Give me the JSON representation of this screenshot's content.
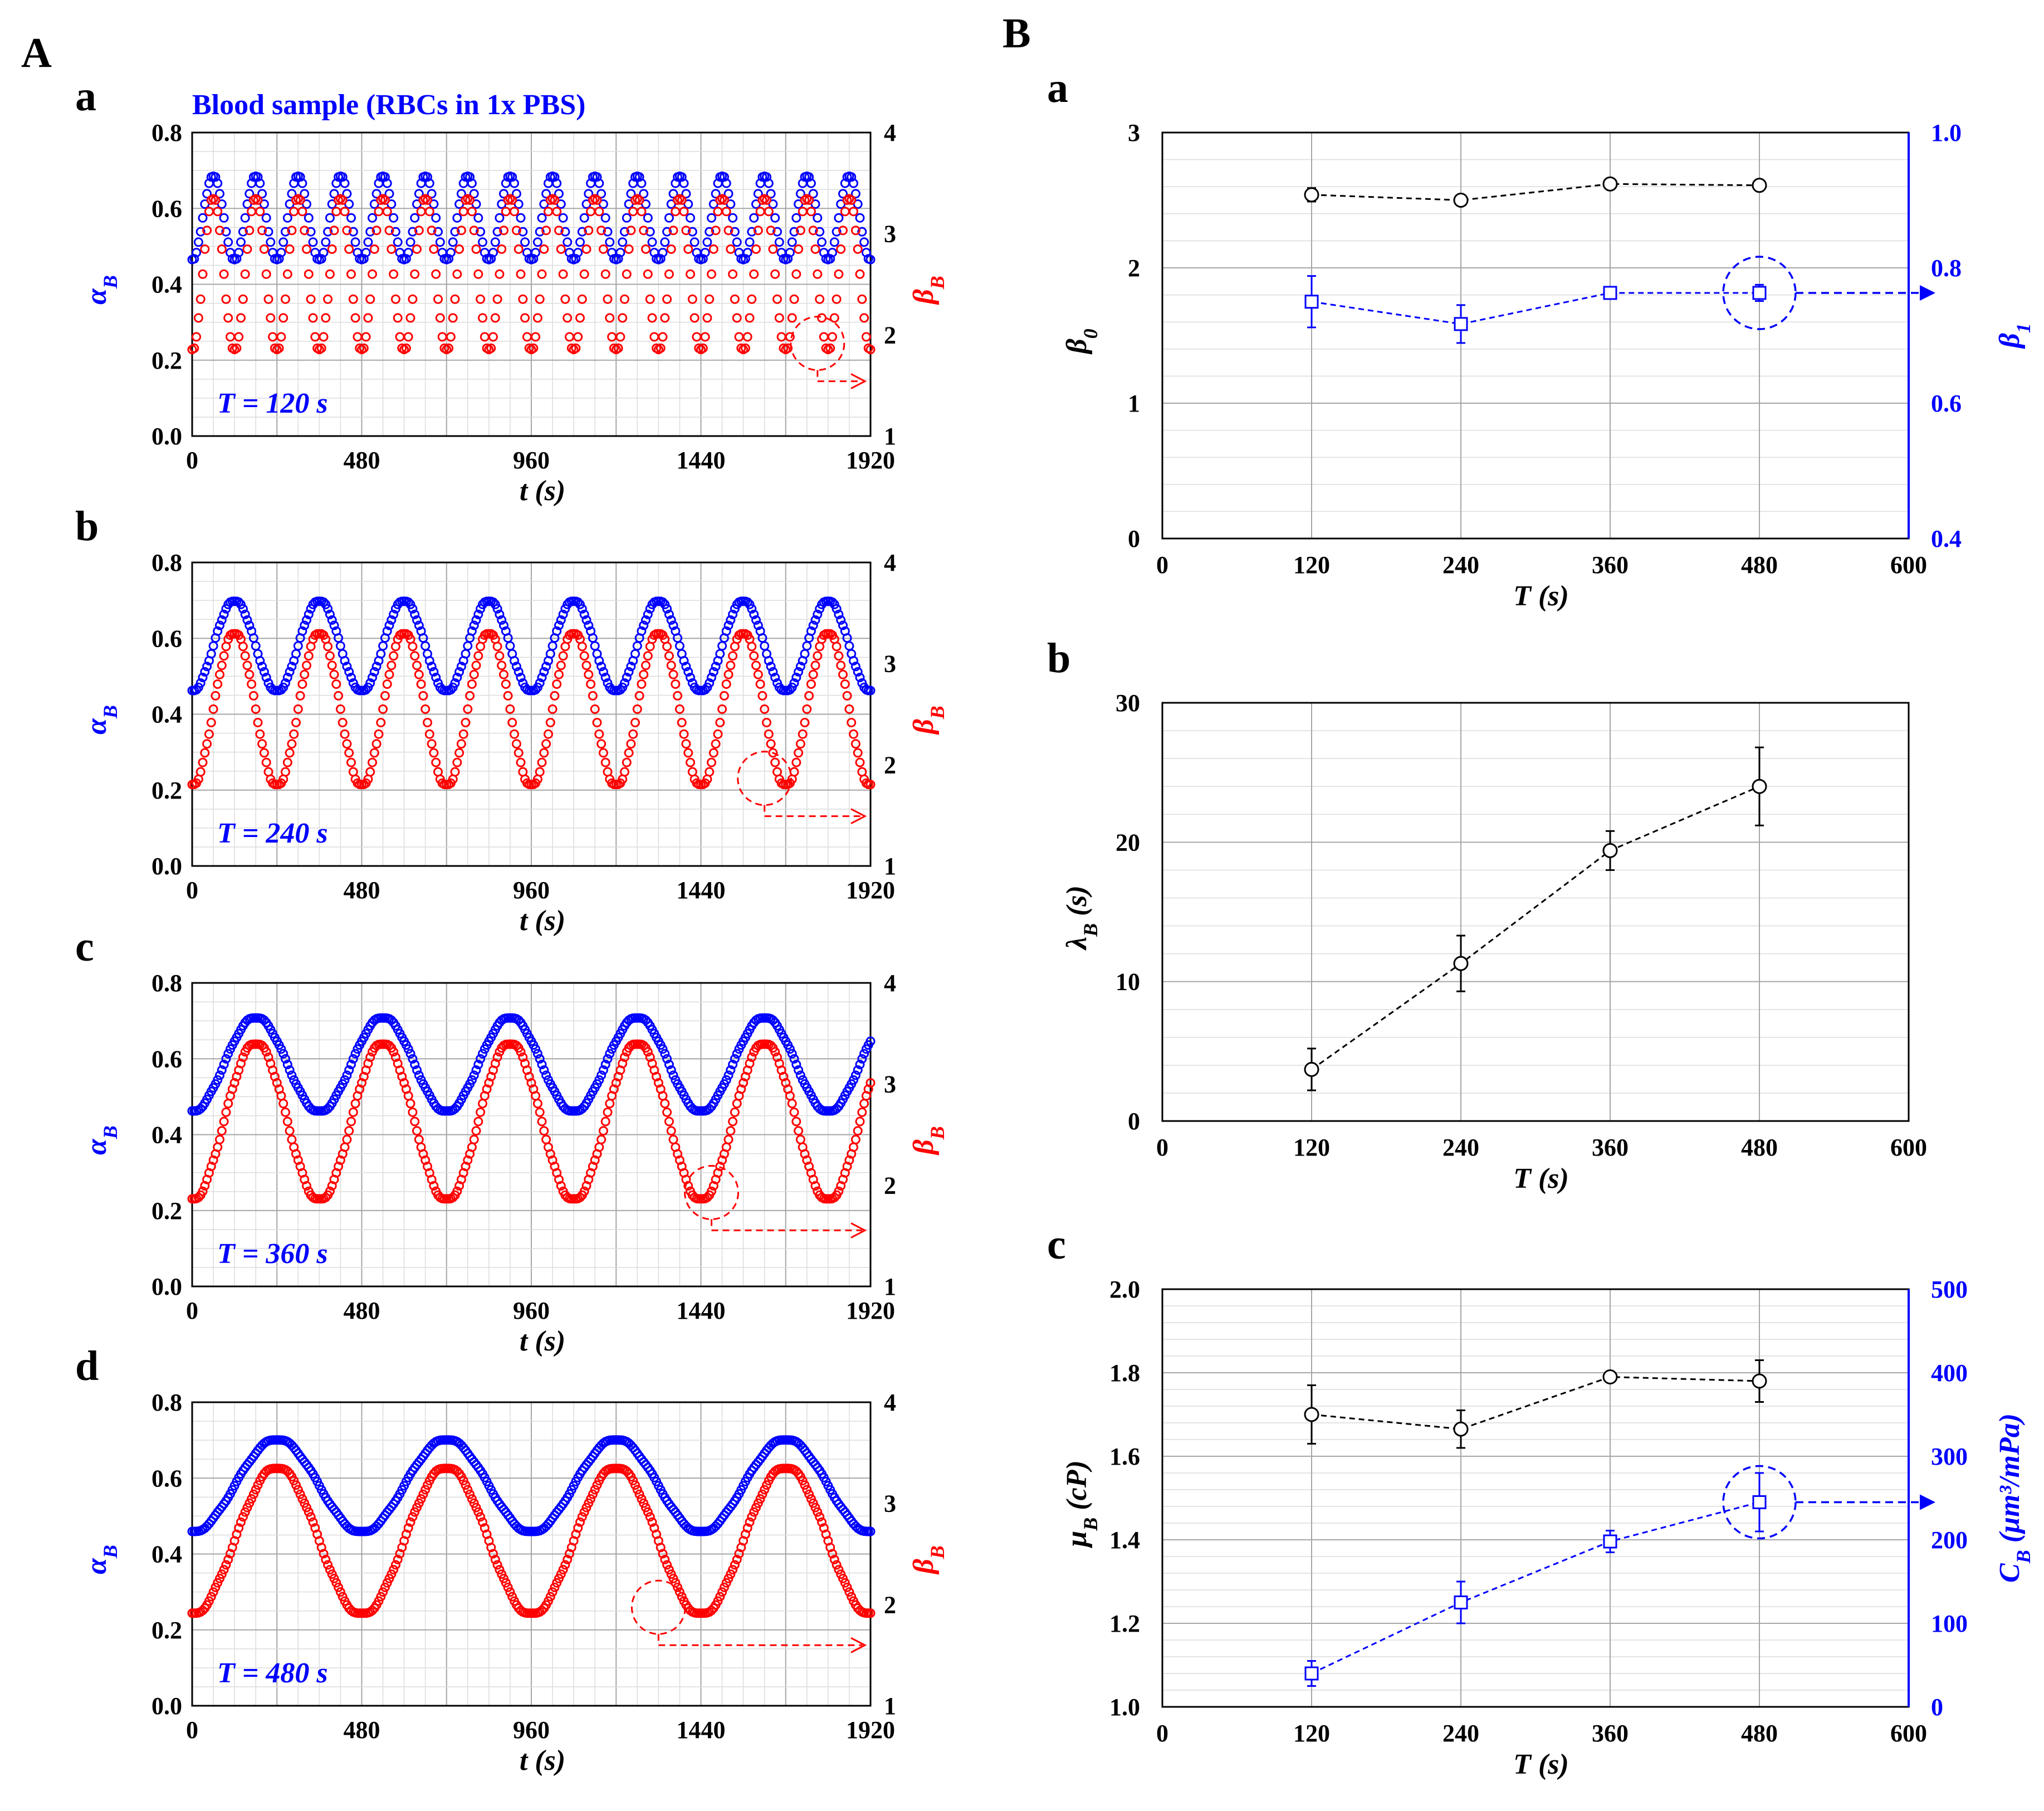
{
  "figure": {
    "panel_A_label": "A",
    "panel_B_label": "B",
    "sample_title": "Blood sample (RBCs in 1x PBS)"
  },
  "colors": {
    "alpha": "#0000ff",
    "beta": "#ff0000",
    "black": "#000000",
    "grid_major": "#a6a6a6",
    "grid_minor": "#dcdcdc"
  },
  "chart_data": [
    {
      "id": "A-a",
      "label": "a",
      "type": "scatter",
      "period": 120,
      "period_label": "T = 120 s",
      "xlabel": "t (s)",
      "ylabel_left": "α",
      "ylabel_left_sub": "B",
      "ylabel_right": "β",
      "ylabel_right_sub": "B",
      "xlim": [
        0,
        1920
      ],
      "xticks": [
        0,
        480,
        960,
        1440,
        1920
      ],
      "xtick_labels": [
        "0",
        "480",
        "960",
        "1440",
        "1920"
      ],
      "ylim_left": [
        0,
        0.8
      ],
      "yticks_left_labels": [
        "0.0",
        "0.2",
        "0.4",
        "0.6",
        "0.8"
      ],
      "ylim_right": [
        1,
        4
      ],
      "yticks_right_labels": [
        "1",
        "2",
        "3",
        "4"
      ],
      "series": [
        {
          "name": "αB",
          "axis": "left",
          "mean": 0.575,
          "amp": 0.112,
          "color": "#0000ff"
        },
        {
          "name": "βB",
          "axis": "right",
          "mean": 2.6,
          "amp": 0.76,
          "color": "#ff0000"
        }
      ]
    },
    {
      "id": "A-b",
      "label": "b",
      "type": "scatter",
      "period": 240,
      "period_label": "T = 240 s",
      "xlabel": "t (s)",
      "ylabel_left": "α",
      "ylabel_left_sub": "B",
      "ylabel_right": "β",
      "ylabel_right_sub": "B",
      "xlim": [
        0,
        1920
      ],
      "xticks": [
        0,
        480,
        960,
        1440,
        1920
      ],
      "xtick_labels": [
        "0",
        "480",
        "960",
        "1440",
        "1920"
      ],
      "ylim_left": [
        0,
        0.8
      ],
      "yticks_left_labels": [
        "0.0",
        "0.2",
        "0.4",
        "0.6",
        "0.8"
      ],
      "ylim_right": [
        1,
        4
      ],
      "yticks_right_labels": [
        "1",
        "2",
        "3",
        "4"
      ],
      "series": [
        {
          "name": "αB",
          "axis": "left",
          "mean": 0.58,
          "amp": 0.12,
          "color": "#0000ff"
        },
        {
          "name": "βB",
          "axis": "right",
          "mean": 2.55,
          "amp": 0.76,
          "color": "#ff0000"
        }
      ]
    },
    {
      "id": "A-c",
      "label": "c",
      "type": "scatter",
      "period": 360,
      "period_label": "T = 360 s",
      "xlabel": "t (s)",
      "ylabel_left": "α",
      "ylabel_left_sub": "B",
      "ylabel_right": "β",
      "ylabel_right_sub": "B",
      "xlim": [
        0,
        1920
      ],
      "xticks": [
        0,
        480,
        960,
        1440,
        1920
      ],
      "xtick_labels": [
        "0",
        "480",
        "960",
        "1440",
        "1920"
      ],
      "ylim_left": [
        0,
        0.8
      ],
      "yticks_left_labels": [
        "0.0",
        "0.2",
        "0.4",
        "0.6",
        "0.8"
      ],
      "ylim_right": [
        1,
        4
      ],
      "yticks_right_labels": [
        "1",
        "2",
        "3",
        "4"
      ],
      "series": [
        {
          "name": "αB",
          "axis": "left",
          "mean": 0.585,
          "amp": 0.125,
          "color": "#0000ff"
        },
        {
          "name": "βB",
          "axis": "right",
          "mean": 2.63,
          "amp": 0.78,
          "color": "#ff0000"
        }
      ]
    },
    {
      "id": "A-d",
      "label": "d",
      "type": "scatter",
      "period": 480,
      "period_label": "T = 480 s",
      "xlabel": "t (s)",
      "ylabel_left": "α",
      "ylabel_left_sub": "B",
      "ylabel_right": "β",
      "ylabel_right_sub": "B",
      "xlim": [
        0,
        1920
      ],
      "xticks": [
        0,
        480,
        960,
        1440,
        1920
      ],
      "xtick_labels": [
        "0",
        "480",
        "960",
        "1440",
        "1920"
      ],
      "ylim_left": [
        0,
        0.8
      ],
      "yticks_left_labels": [
        "0.0",
        "0.2",
        "0.4",
        "0.6",
        "0.8"
      ],
      "ylim_right": [
        1,
        4
      ],
      "yticks_right_labels": [
        "1",
        "2",
        "3",
        "4"
      ],
      "series": [
        {
          "name": "αB",
          "axis": "left",
          "mean": 0.58,
          "amp": 0.123,
          "color": "#0000ff"
        },
        {
          "name": "βB",
          "axis": "right",
          "mean": 2.63,
          "amp": 0.73,
          "color": "#ff0000"
        }
      ]
    },
    {
      "id": "B-a",
      "label": "a",
      "type": "line",
      "xlabel": "T (s)",
      "x": [
        120,
        240,
        360,
        480
      ],
      "xlim": [
        0,
        600
      ],
      "xtick_labels": [
        "0",
        "120",
        "240",
        "360",
        "480",
        "600"
      ],
      "ylabel_left": "β",
      "ylabel_left_sub": "0",
      "ylim_left": [
        0,
        3
      ],
      "yticks_left_labels": [
        "0",
        "1",
        "2",
        "3"
      ],
      "ylabel_right": "β",
      "ylabel_right_sub": "1",
      "ylim_right": [
        0.4,
        1.0
      ],
      "yticks_right_labels": [
        "0.4",
        "0.6",
        "0.8",
        "1.0"
      ],
      "series": [
        {
          "name": "β0",
          "axis": "left",
          "marker": "circle",
          "color": "#000000",
          "values": [
            2.54,
            2.5,
            2.62,
            2.61
          ],
          "errors": [
            0.05,
            0.02,
            0.01,
            0.01
          ]
        },
        {
          "name": "β1",
          "axis": "right",
          "marker": "square",
          "color": "#0000ff",
          "values": [
            0.75,
            0.717,
            0.763,
            0.763
          ],
          "errors": [
            0.038,
            0.028,
            0.008,
            0.012
          ]
        }
      ]
    },
    {
      "id": "B-b",
      "label": "b",
      "type": "line",
      "xlabel": "T (s)",
      "x": [
        120,
        240,
        360,
        480
      ],
      "xlim": [
        0,
        600
      ],
      "xtick_labels": [
        "0",
        "120",
        "240",
        "360",
        "480",
        "600"
      ],
      "ylabel_left": "λ",
      "ylabel_left_sub": "B",
      "ylabel_left_suffix": " (s)",
      "ylim_left": [
        0,
        30
      ],
      "yticks_left_labels": [
        "0",
        "10",
        "20",
        "30"
      ],
      "series": [
        {
          "name": "λB",
          "axis": "left",
          "marker": "circle",
          "color": "#000000",
          "values": [
            3.7,
            11.3,
            19.4,
            24.0
          ],
          "errors": [
            1.5,
            2.0,
            1.4,
            2.8
          ]
        }
      ]
    },
    {
      "id": "B-c",
      "label": "c",
      "type": "line",
      "xlabel": "T (s)",
      "x": [
        120,
        240,
        360,
        480
      ],
      "xlim": [
        0,
        600
      ],
      "xtick_labels": [
        "0",
        "120",
        "240",
        "360",
        "480",
        "600"
      ],
      "ylabel_left": "μ",
      "ylabel_left_sub": "B",
      "ylabel_left_suffix": " (cP)",
      "ylim_left": [
        1.0,
        2.0
      ],
      "yticks_left_labels": [
        "1.0",
        "1.2",
        "1.4",
        "1.6",
        "1.8",
        "2.0"
      ],
      "ylabel_right": "C",
      "ylabel_right_sub": "B",
      "ylabel_right_suffix": " (μm³/mPa)",
      "ylim_right": [
        0,
        500
      ],
      "yticks_right_labels": [
        "0",
        "100",
        "200",
        "300",
        "400",
        "500"
      ],
      "series": [
        {
          "name": "μB",
          "axis": "left",
          "marker": "circle",
          "color": "#000000",
          "values": [
            1.7,
            1.665,
            1.79,
            1.78
          ],
          "errors": [
            0.07,
            0.045,
            0.01,
            0.05
          ]
        },
        {
          "name": "CB",
          "axis": "right",
          "marker": "square",
          "color": "#0000ff",
          "values": [
            40,
            125,
            198,
            245
          ],
          "errors": [
            15,
            25,
            13,
            35
          ]
        }
      ]
    }
  ]
}
